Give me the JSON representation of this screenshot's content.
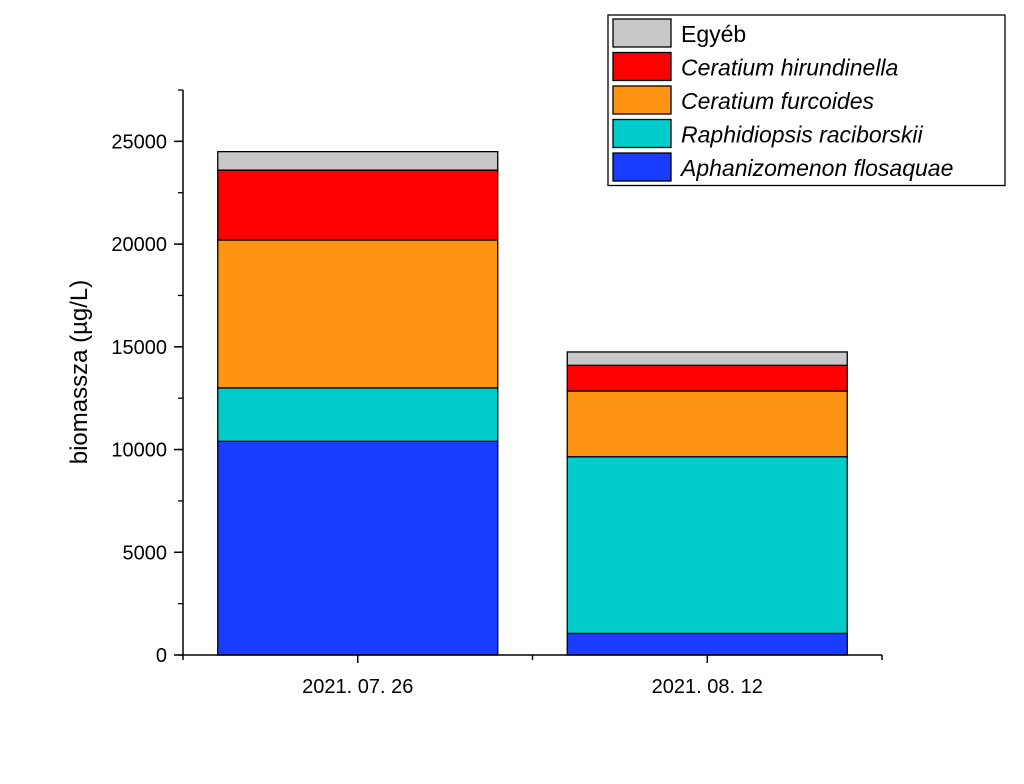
{
  "chart_data": {
    "type": "bar",
    "stacked": true,
    "categories": [
      "2021. 07. 26",
      "2021. 08. 12"
    ],
    "ylabel": "biomassza (µg/L)",
    "xlabel": "",
    "ylim": [
      0,
      27500
    ],
    "yticks": [
      0,
      5000,
      10000,
      15000,
      20000,
      25000
    ],
    "grid": false,
    "legend_position": "top-right",
    "series": [
      {
        "name": "Aphanizomenon flosaquae",
        "italic": true,
        "color": "#1a3cff",
        "values": [
          10400,
          1050
        ]
      },
      {
        "name": "Raphidiopsis raciborskii",
        "italic": true,
        "color": "#00cccc",
        "values": [
          2600,
          8600
        ]
      },
      {
        "name": "Ceratium furcoides",
        "italic": true,
        "color": "#ff9412",
        "values": [
          7200,
          3200
        ]
      },
      {
        "name": "Ceratium hirundinella",
        "italic": true,
        "color": "#ff0000",
        "values": [
          3400,
          1250
        ]
      },
      {
        "name": "Egyéb",
        "italic": false,
        "color": "#c8c8c8",
        "values": [
          900,
          650
        ]
      }
    ]
  }
}
